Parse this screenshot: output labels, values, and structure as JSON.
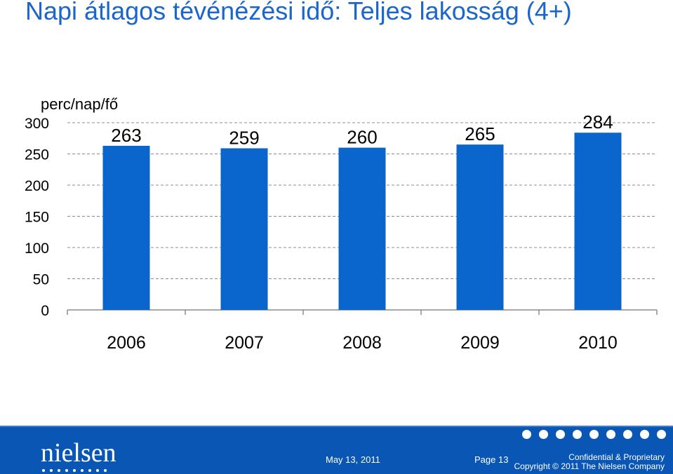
{
  "title": "Napi átlagos tévénézési idő: Teljes lakosság (4+)",
  "chart_data": {
    "type": "bar",
    "unit_label": "perc/nap/fő",
    "categories": [
      "2006",
      "2007",
      "2008",
      "2009",
      "2010"
    ],
    "values": [
      263,
      259,
      260,
      265,
      284
    ],
    "ylim": [
      0,
      300
    ],
    "yticks": [
      0,
      50,
      100,
      150,
      200,
      250,
      300
    ],
    "grid": true,
    "bar_color": "#0a66cc"
  },
  "footer": {
    "logo": "nielsen",
    "date": "May 13, 2011",
    "page": "Page 13",
    "confidential": "Confidential & Proprietary",
    "copyright": "Copyright © 2011 The Nielsen Company",
    "background_color": "#0a56b4"
  }
}
